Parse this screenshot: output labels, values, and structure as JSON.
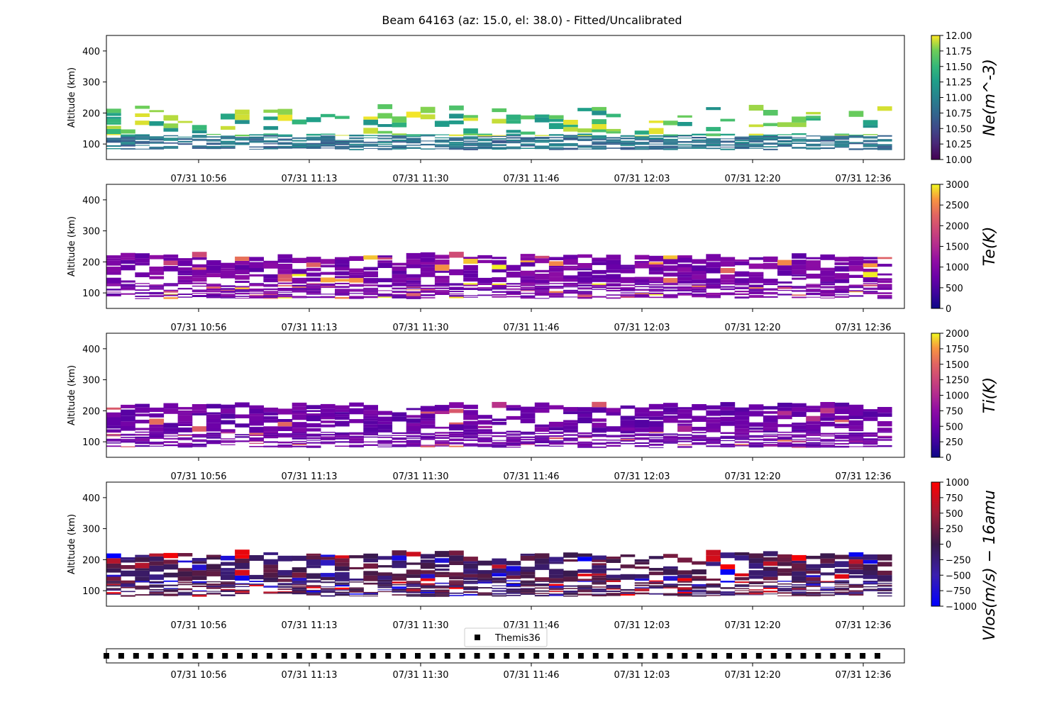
{
  "figure": {
    "title": "Beam 64163 (az: 15.0, el: 38.0) - Fitted/Uncalibrated"
  },
  "chart_data": [
    {
      "type": "heatmap",
      "parameter": "Ne",
      "ylabel": "Altitude (km)",
      "colorbar_label": "Ne(m^-3)",
      "colorbar_ticks": [
        "10.00",
        "10.25",
        "10.50",
        "10.75",
        "11.00",
        "11.25",
        "11.50",
        "11.75",
        "12.00"
      ],
      "clim": [
        10,
        12
      ],
      "colormap": "viridis",
      "ylim": [
        50,
        450
      ],
      "yticks": [
        "100",
        "200",
        "300",
        "400"
      ],
      "xticks": [
        "07/31 10:56",
        "07/31 11:13",
        "07/31 11:30",
        "07/31 11:46",
        "07/31 12:03",
        "07/31 12:20",
        "07/31 12:36"
      ],
      "altitude_range_km": [
        80,
        215
      ]
    },
    {
      "type": "heatmap",
      "parameter": "Te",
      "ylabel": "Altitude (km)",
      "colorbar_label": "Te(K)",
      "colorbar_ticks": [
        "0",
        "500",
        "1000",
        "1500",
        "2000",
        "2500",
        "3000"
      ],
      "clim": [
        0,
        3000
      ],
      "colormap": "plasma",
      "ylim": [
        50,
        450
      ],
      "yticks": [
        "100",
        "200",
        "300",
        "400"
      ],
      "xticks": [
        "07/31 10:56",
        "07/31 11:13",
        "07/31 11:30",
        "07/31 11:46",
        "07/31 12:03",
        "07/31 12:20",
        "07/31 12:36"
      ],
      "altitude_range_km": [
        80,
        215
      ]
    },
    {
      "type": "heatmap",
      "parameter": "Ti",
      "ylabel": "Altitude (km)",
      "colorbar_label": "Ti(K)",
      "colorbar_ticks": [
        "0",
        "250",
        "500",
        "750",
        "1000",
        "1250",
        "1500",
        "1750",
        "2000"
      ],
      "clim": [
        0,
        2000
      ],
      "colormap": "plasma",
      "ylim": [
        50,
        450
      ],
      "yticks": [
        "100",
        "200",
        "300",
        "400"
      ],
      "xticks": [
        "07/31 10:56",
        "07/31 11:13",
        "07/31 11:30",
        "07/31 11:46",
        "07/31 12:03",
        "07/31 12:20",
        "07/31 12:36"
      ],
      "altitude_range_km": [
        80,
        215
      ]
    },
    {
      "type": "heatmap",
      "parameter": "Vlos",
      "ylabel": "Altitude (km)",
      "colorbar_label": "Vlos(m/s) − 16amu",
      "colorbar_ticks": [
        "−1000",
        "−750",
        "−500",
        "−250",
        "0",
        "250",
        "500",
        "750",
        "1000"
      ],
      "clim": [
        -1000,
        1000
      ],
      "colormap": "bwr-dark",
      "ylim": [
        50,
        450
      ],
      "yticks": [
        "100",
        "200",
        "300",
        "400"
      ],
      "xticks": [
        "07/31 10:56",
        "07/31 11:13",
        "07/31 11:30",
        "07/31 11:46",
        "07/31 12:03",
        "07/31 12:20",
        "07/31 12:36"
      ],
      "altitude_range_km": [
        80,
        215
      ]
    },
    {
      "type": "scatter",
      "legend": [
        "Themis36"
      ],
      "marker": "square",
      "color": "#000000",
      "n_points": 53,
      "xticks": [
        "07/31 10:56",
        "07/31 11:13",
        "07/31 11:30",
        "07/31 11:46",
        "07/31 12:03",
        "07/31 12:20",
        "07/31 12:36"
      ]
    }
  ]
}
